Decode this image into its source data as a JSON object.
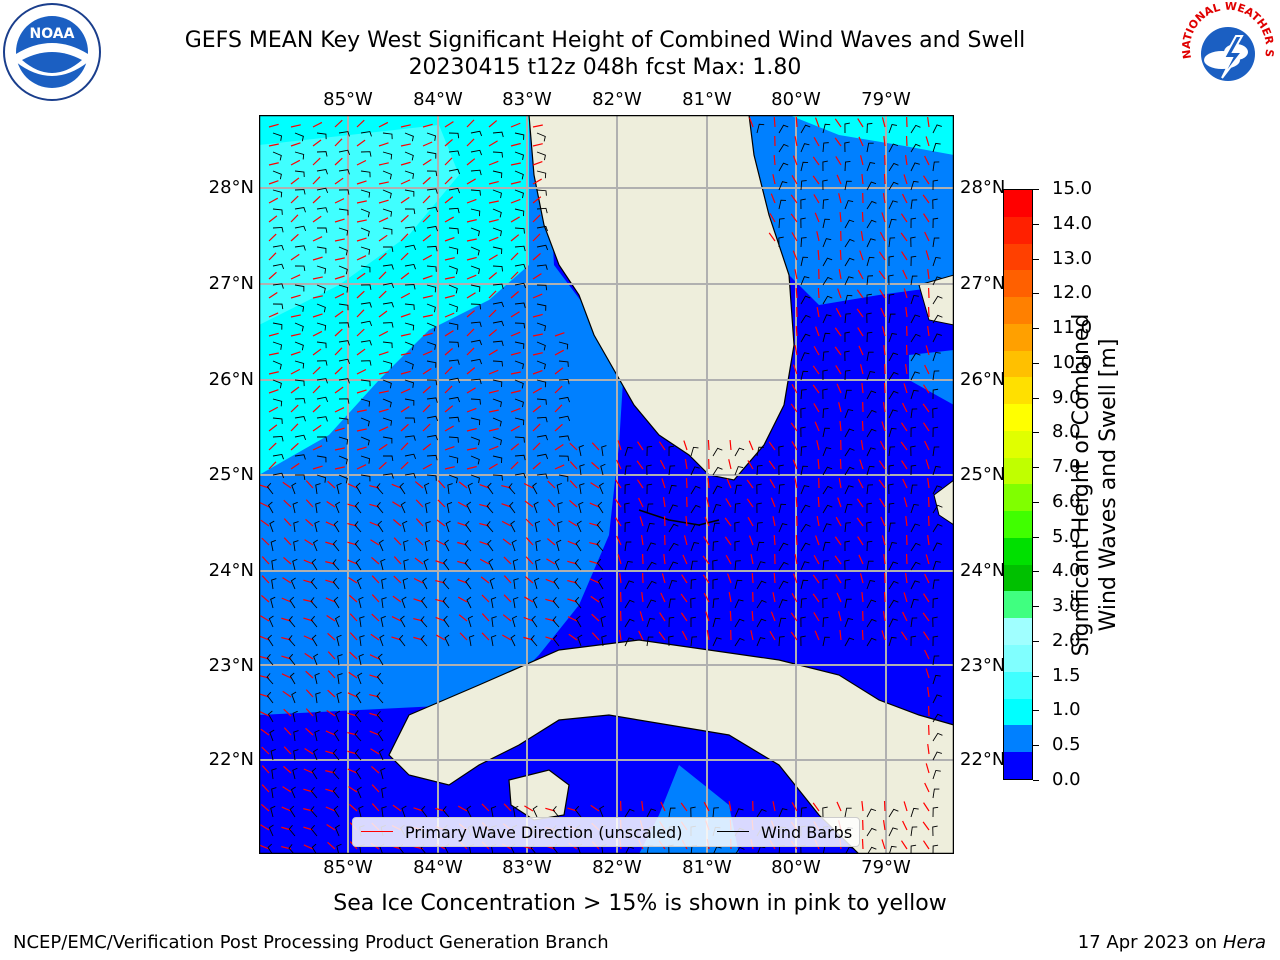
{
  "header": {
    "title_line1": "GEFS MEAN Key West Significant Height of Combined Wind Waves and Swell",
    "title_line2": "20230415 t12z 048h fcst   Max: 1.80",
    "left_logo_text": "NOAA",
    "right_logo_text": "NATIONAL WEATHER SERVICE"
  },
  "map": {
    "lon_labels": [
      "85°W",
      "84°W",
      "83°W",
      "82°W",
      "81°W",
      "80°W",
      "79°W"
    ],
    "lat_labels": [
      "28°N",
      "27°N",
      "26°N",
      "25°N",
      "24°N",
      "23°N",
      "22°N"
    ],
    "colors": {
      "land": "#eeeedc",
      "level_0_0_5": "#0000ff",
      "level_0_5_1_0": "#0080ff",
      "level_1_0_1_5": "#00ffff",
      "level_1_5_2_0": "#40ffff",
      "wave_arrow": "#ff0000",
      "wind_barb": "#000000",
      "grid": "#b0b0b0"
    }
  },
  "legend": {
    "wave_label": "Primary Wave Direction (unscaled)",
    "barb_label": "Wind Barbs"
  },
  "colorbar": {
    "title_line1": "Significant Height of Combined",
    "title_line2": "Wind Waves and Swell [m]",
    "ticks": [
      "15.0",
      "14.0",
      "13.0",
      "12.0",
      "11.0",
      "10.0",
      "9.0",
      "8.0",
      "7.0",
      "6.0",
      "5.0",
      "4.0",
      "3.0",
      "2.0",
      "1.5",
      "1.0",
      "0.5",
      "0.0"
    ],
    "colors_top_to_bottom": [
      "#ff0000",
      "#ff2000",
      "#ff4000",
      "#ff6000",
      "#ff8000",
      "#ffa000",
      "#ffc000",
      "#ffe000",
      "#ffff00",
      "#e0ff00",
      "#c0ff00",
      "#80ff00",
      "#40ff00",
      "#00e000",
      "#00c000",
      "#40ff80",
      "#a0ffff",
      "#80ffff",
      "#40ffff",
      "#00ffff",
      "#0080ff",
      "#0000ff"
    ]
  },
  "caption": "Sea Ice Concentration > 15% is shown in pink to yellow",
  "footer": {
    "left": "NCEP/EMC/Verification Post Processing Product Generation Branch",
    "right_date": "17 Apr 2023 on ",
    "right_host": "Hera"
  }
}
